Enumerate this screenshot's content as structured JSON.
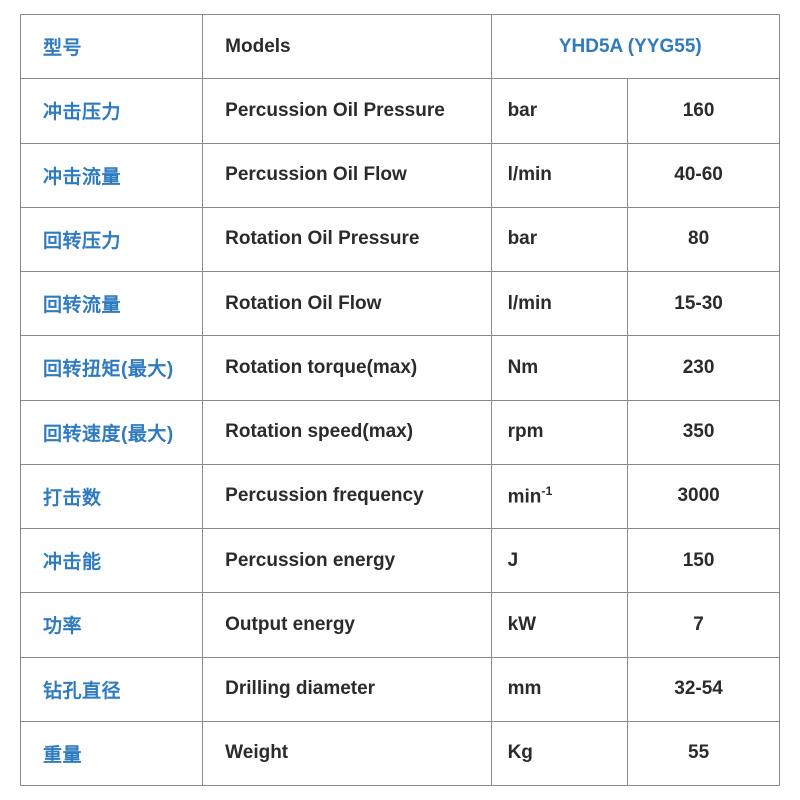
{
  "colors": {
    "accent": "#2e7bbf",
    "text": "#2b2b2b",
    "border": "#8a8a8a"
  },
  "table": {
    "header": {
      "cn": "型号",
      "en": "Models",
      "model": "YHD5A (YYG55)"
    },
    "rows": [
      {
        "cn": "冲击压力",
        "en": "Percussion Oil Pressure",
        "unit": "bar",
        "val": "160"
      },
      {
        "cn": "冲击流量",
        "en": "Percussion Oil Flow",
        "unit": "l/min",
        "val": "40-60"
      },
      {
        "cn": "回转压力",
        "en": "Rotation Oil Pressure",
        "unit": "bar",
        "val": "80"
      },
      {
        "cn": "回转流量",
        "en": "Rotation Oil Flow",
        "unit": "l/min",
        "val": "15-30"
      },
      {
        "cn": "回转扭矩(最大)",
        "en": "Rotation torque(max)",
        "unit": "Nm",
        "val": "230"
      },
      {
        "cn": "回转速度(最大)",
        "en": "Rotation speed(max)",
        "unit": "rpm",
        "val": "350"
      },
      {
        "cn": "打击数",
        "en": "Percussion frequency",
        "unit": "min-1",
        "val": "3000",
        "unit_sup": true
      },
      {
        "cn": "冲击能",
        "en": "Percussion energy",
        "unit": "J",
        "val": "150"
      },
      {
        "cn": "功率",
        "en": "Output energy",
        "unit": "kW",
        "val": "7"
      },
      {
        "cn": "钻孔直径",
        "en": "Drilling diameter",
        "unit": "mm",
        "val": "32-54"
      },
      {
        "cn": "重量",
        "en": "Weight",
        "unit": "Kg",
        "val": "55"
      }
    ]
  }
}
